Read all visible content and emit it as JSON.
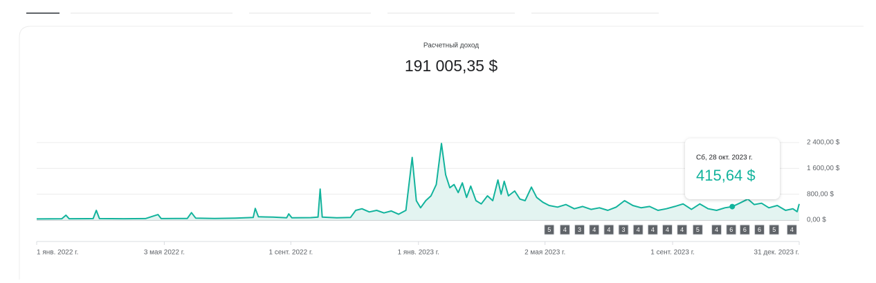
{
  "header": {
    "title": "Расчетный доход",
    "total": "191 005,35 $"
  },
  "chart_data": {
    "type": "line",
    "color": "#12b39c",
    "fill": "#e3f4f1",
    "x": [
      "2022-01-01",
      "2022-01-25",
      "2022-01-29",
      "2022-02-01",
      "2022-02-24",
      "2022-02-27",
      "2022-03-02",
      "2022-03-25",
      "2022-04-15",
      "2022-04-27",
      "2022-04-30",
      "2022-05-25",
      "2022-05-29",
      "2022-06-02",
      "2022-06-20",
      "2022-07-10",
      "2022-07-27",
      "2022-07-29",
      "2022-08-01",
      "2022-08-15",
      "2022-08-28",
      "2022-08-30",
      "2022-09-02",
      "2022-09-20",
      "2022-09-27",
      "2022-09-29",
      "2022-10-01",
      "2022-10-15",
      "2022-10-28",
      "2022-11-02",
      "2022-11-08",
      "2022-11-15",
      "2022-11-22",
      "2022-11-29",
      "2022-12-06",
      "2022-12-13",
      "2022-12-20",
      "2022-12-26",
      "2022-12-30",
      "2023-01-03",
      "2023-01-08",
      "2023-01-13",
      "2023-01-18",
      "2023-01-23",
      "2023-01-27",
      "2023-01-31",
      "2023-02-04",
      "2023-02-08",
      "2023-02-12",
      "2023-02-16",
      "2023-02-20",
      "2023-02-25",
      "2023-03-02",
      "2023-03-08",
      "2023-03-13",
      "2023-03-18",
      "2023-03-21",
      "2023-03-24",
      "2023-03-28",
      "2023-04-03",
      "2023-04-08",
      "2023-04-13",
      "2023-04-19",
      "2023-04-24",
      "2023-04-30",
      "2023-05-06",
      "2023-05-14",
      "2023-05-22",
      "2023-05-30",
      "2023-06-07",
      "2023-06-15",
      "2023-06-23",
      "2023-07-01",
      "2023-07-09",
      "2023-07-17",
      "2023-07-25",
      "2023-08-02",
      "2023-08-10",
      "2023-08-18",
      "2023-08-26",
      "2023-09-03",
      "2023-09-11",
      "2023-09-19",
      "2023-09-27",
      "2023-10-05",
      "2023-10-13",
      "2023-10-21",
      "2023-10-28",
      "2023-11-04",
      "2023-11-12",
      "2023-11-18",
      "2023-11-25",
      "2023-12-02",
      "2023-12-10",
      "2023-12-18",
      "2023-12-25",
      "2023-12-29",
      "2023-12-31"
    ],
    "values": [
      35,
      40,
      150,
      40,
      45,
      300,
      45,
      40,
      45,
      170,
      45,
      50,
      230,
      60,
      50,
      60,
      80,
      360,
      100,
      90,
      70,
      190,
      70,
      75,
      90,
      960,
      90,
      70,
      80,
      300,
      350,
      250,
      300,
      220,
      280,
      180,
      300,
      1940,
      600,
      380,
      600,
      750,
      1100,
      2370,
      1400,
      1000,
      1100,
      850,
      1150,
      700,
      1050,
      600,
      500,
      750,
      600,
      1240,
      800,
      1200,
      750,
      900,
      650,
      600,
      1020,
      700,
      550,
      450,
      400,
      480,
      350,
      420,
      330,
      380,
      300,
      400,
      600,
      450,
      380,
      420,
      300,
      350,
      420,
      500,
      330,
      500,
      350,
      300,
      380,
      415.64,
      520,
      650,
      480,
      520,
      380,
      450,
      300,
      350,
      260,
      500
    ],
    "xlim": [
      "2022-01-01",
      "2023-12-31"
    ],
    "xticks": [
      {
        "value": "2022-01-01",
        "label": "1 янв. 2022 г."
      },
      {
        "value": "2022-05-03",
        "label": "3 мая 2022 г."
      },
      {
        "value": "2022-09-01",
        "label": "1 сент. 2022 г."
      },
      {
        "value": "2023-01-01",
        "label": "1 янв. 2023 г."
      },
      {
        "value": "2023-05-02",
        "label": "2 мая 2023 г."
      },
      {
        "value": "2023-09-01",
        "label": "1 сент. 2023 г."
      },
      {
        "value": "2023-12-31",
        "label": "31 дек. 2023 г."
      }
    ],
    "ylim": [
      0,
      2400
    ],
    "yticks": [
      {
        "value": 0,
        "label": "0,00 $"
      },
      {
        "value": 800,
        "label": "800,00 $"
      },
      {
        "value": 1600,
        "label": "1 600,00 $"
      },
      {
        "value": 2400,
        "label": "2 400,00 $"
      }
    ],
    "grid": true,
    "annotations": {
      "x": [
        "2023-05-06",
        "2023-05-21",
        "2023-06-04",
        "2023-06-18",
        "2023-07-02",
        "2023-07-16",
        "2023-07-30",
        "2023-08-13",
        "2023-08-27",
        "2023-09-10",
        "2023-09-25",
        "2023-10-13",
        "2023-10-27",
        "2023-11-09",
        "2023-11-23",
        "2023-12-07",
        "2023-12-24"
      ],
      "labels": [
        5,
        4,
        3,
        4,
        4,
        3,
        4,
        4,
        4,
        4,
        5,
        4,
        6,
        6,
        6,
        5,
        4
      ]
    },
    "tooltip": {
      "x": "2023-10-28",
      "title": "Сб, 28 окт. 2023 г.",
      "value": 415.64,
      "value_label": "415,64 $"
    }
  }
}
